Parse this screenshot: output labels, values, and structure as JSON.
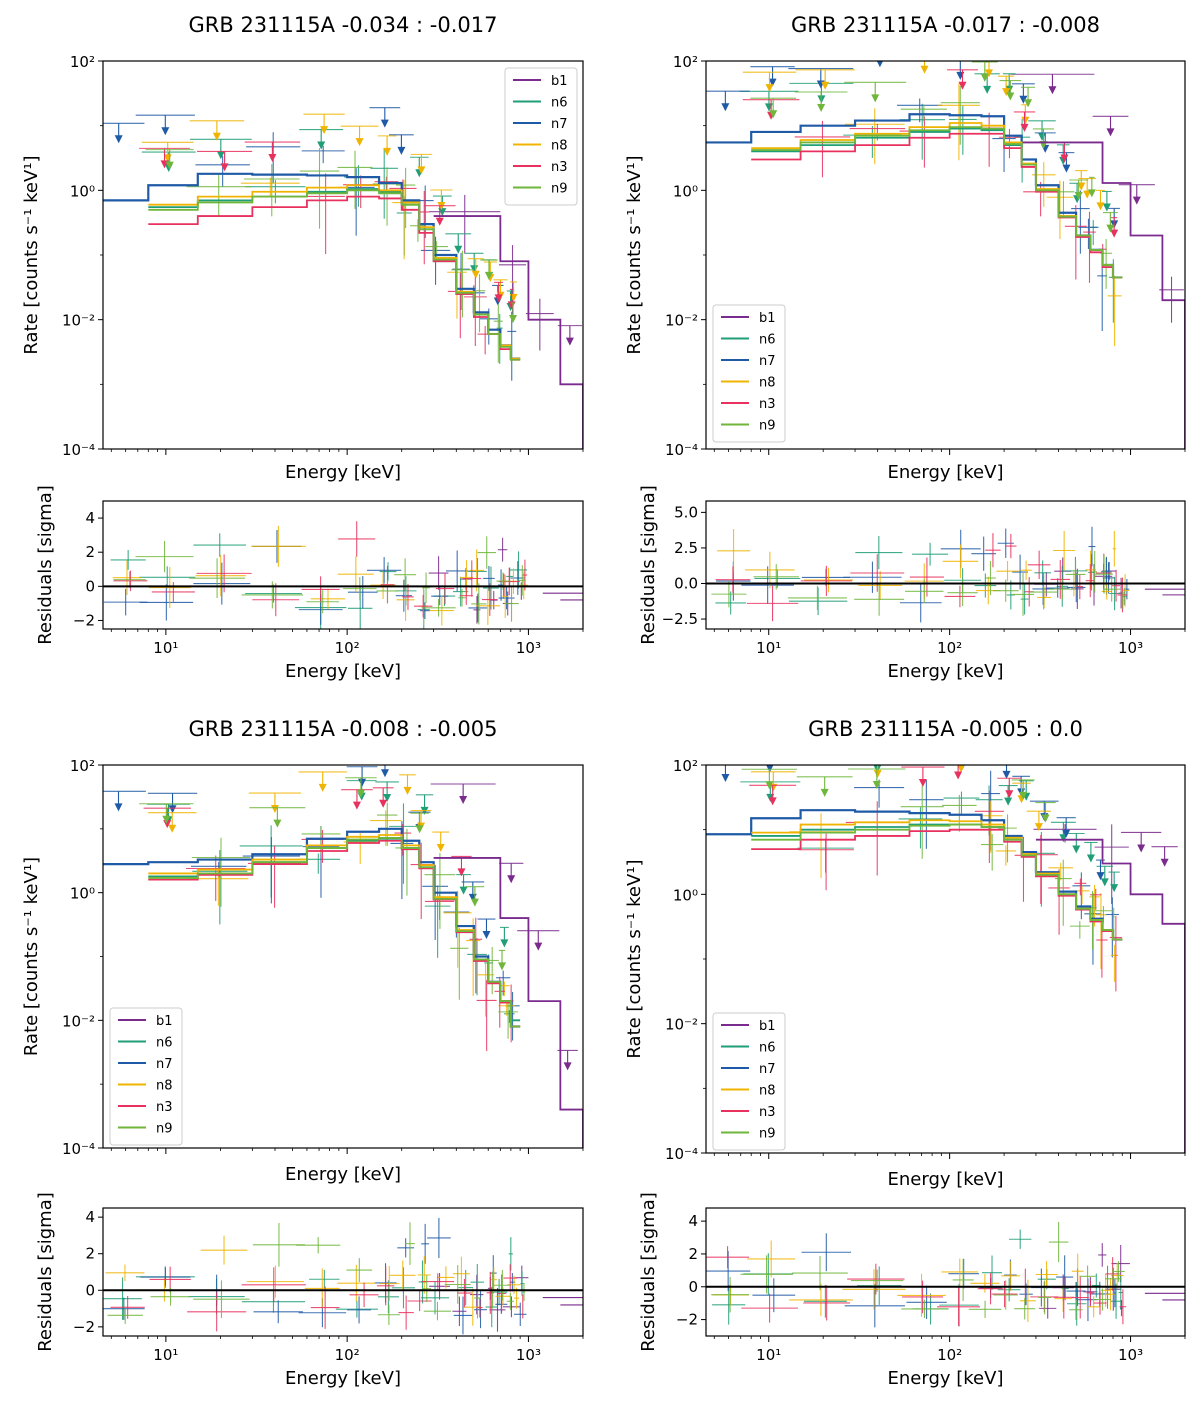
{
  "figure": {
    "label": "GRB 231115A spectral fits across four time bins"
  },
  "colors": {
    "b1": "#7b2a8d",
    "n6": "#1f9e77",
    "n7": "#1f5aa6",
    "n8": "#f0b400",
    "n3": "#e8315e",
    "n9": "#6fb63a",
    "zero_line": "#000000"
  },
  "chart_data": [
    {
      "type": "line",
      "title": "GRB 231115A  -0.034 : -0.017",
      "xlabel_top": "Energy [keV]",
      "ylabel_top": "Rate [counts s⁻¹ keV¹]",
      "xlabel_bottom": "Energy [keV]",
      "ylabel_bottom": "Residuals [sigma]",
      "xlim": [
        4.5,
        2000
      ],
      "xscale": "log",
      "ylim_top": [
        0.0001,
        100
      ],
      "yscale_top": "log",
      "yticks_top": [
        "10²",
        "10⁰",
        "10⁻²",
        "10⁻⁴"
      ],
      "ylim_bottom": [
        -2.5,
        5.0
      ],
      "yticks_bottom": [
        "4",
        "2",
        "0",
        "−2"
      ],
      "xticks": [
        "10¹",
        "10²",
        "10³"
      ],
      "legend_position": "top-right",
      "legend": [
        "b1",
        "n6",
        "n7",
        "n8",
        "n3",
        "n9"
      ],
      "models": [
        {
          "name": "b1",
          "energies": [
            300,
            700,
            1000,
            1500,
            2000
          ],
          "rates": [
            0.4,
            0.08,
            0.01,
            0.001
          ]
        },
        {
          "name": "n6",
          "energies": [
            8,
            15,
            30,
            60,
            100,
            150,
            200,
            250,
            300,
            400,
            500,
            600,
            700,
            800,
            900
          ],
          "rates": [
            0.55,
            0.7,
            0.8,
            0.95,
            1.05,
            0.95,
            0.6,
            0.25,
            0.08,
            0.025,
            0.012,
            0.006,
            0.004,
            0.0025
          ]
        },
        {
          "name": "n7",
          "energies": [
            4.5,
            8,
            15,
            30,
            60,
            100,
            150,
            200,
            250,
            300,
            400,
            500,
            600,
            700,
            800,
            900
          ],
          "rates": [
            0.7,
            1.2,
            1.8,
            1.75,
            1.7,
            1.6,
            1.3,
            0.7,
            0.3,
            0.1,
            0.03,
            0.013,
            0.007,
            0.004,
            0.0025
          ]
        },
        {
          "name": "n8",
          "energies": [
            8,
            15,
            30,
            60,
            100,
            150,
            200,
            250,
            300,
            400,
            500,
            600,
            700,
            800,
            900
          ],
          "rates": [
            0.6,
            0.8,
            0.95,
            1.1,
            1.2,
            1.0,
            0.65,
            0.27,
            0.09,
            0.027,
            0.012,
            0.006,
            0.004,
            0.0025
          ]
        },
        {
          "name": "n3",
          "energies": [
            8,
            15,
            30,
            60,
            100,
            150,
            200,
            250,
            300,
            400,
            500,
            600,
            700,
            800,
            900
          ],
          "rates": [
            0.3,
            0.4,
            0.55,
            0.7,
            0.8,
            0.75,
            0.5,
            0.22,
            0.08,
            0.025,
            0.011,
            0.006,
            0.0035,
            0.0024
          ]
        },
        {
          "name": "n9",
          "energies": [
            8,
            15,
            30,
            60,
            100,
            150,
            200,
            250,
            300,
            400,
            500,
            600,
            700,
            800,
            900
          ],
          "rates": [
            0.5,
            0.65,
            0.8,
            0.9,
            1.0,
            0.9,
            0.6,
            0.25,
            0.085,
            0.026,
            0.012,
            0.006,
            0.0038,
            0.0024
          ]
        }
      ]
    },
    {
      "type": "line",
      "title": "GRB 231115A  -0.017 : -0.008",
      "xlabel_top": "Energy [keV]",
      "ylabel_top": "Rate [counts s⁻¹ keV¹]",
      "xlabel_bottom": "Energy [keV]",
      "ylabel_bottom": "Residuals [sigma]",
      "xlim": [
        4.5,
        2000
      ],
      "xscale": "log",
      "ylim_top": [
        0.0001,
        100
      ],
      "yscale_top": "log",
      "yticks_top": [
        "10²",
        "10⁰",
        "10⁻²",
        "10⁻⁴"
      ],
      "ylim_bottom": [
        -3.2,
        5.8
      ],
      "yticks_bottom": [
        "5.0",
        "2.5",
        "0.0",
        "−2.5"
      ],
      "xticks": [
        "10¹",
        "10²",
        "10³"
      ],
      "legend_position": "bottom-left",
      "legend": [
        "b1",
        "n6",
        "n7",
        "n8",
        "n3",
        "n9"
      ],
      "models": [
        {
          "name": "b1",
          "energies": [
            250,
            700,
            1000,
            1500,
            2000
          ],
          "rates": [
            5.5,
            1.3,
            0.2,
            0.02
          ]
        },
        {
          "name": "n6",
          "energies": [
            8,
            15,
            30,
            60,
            100,
            150,
            200,
            250,
            300,
            400,
            500,
            600,
            700,
            800,
            900
          ],
          "rates": [
            4.0,
            5.0,
            6.5,
            8.0,
            9.0,
            8.5,
            5.0,
            2.5,
            1.0,
            0.4,
            0.2,
            0.12,
            0.07,
            0.045
          ]
        },
        {
          "name": "n7",
          "energies": [
            4.5,
            8,
            15,
            30,
            60,
            100,
            150,
            200,
            250,
            300,
            400,
            500,
            600,
            700,
            800,
            900
          ],
          "rates": [
            5.5,
            8.0,
            10.0,
            12.0,
            15.0,
            14.5,
            14.0,
            7.0,
            3.0,
            1.2,
            0.45,
            0.2,
            0.12,
            0.07,
            0.045
          ]
        },
        {
          "name": "n8",
          "energies": [
            8,
            15,
            30,
            60,
            100,
            150,
            200,
            250,
            300,
            400,
            500,
            600,
            700,
            800,
            900
          ],
          "rates": [
            4.5,
            6.0,
            7.5,
            9.5,
            11.0,
            10.0,
            5.5,
            2.6,
            1.05,
            0.4,
            0.2,
            0.12,
            0.07,
            0.045
          ]
        },
        {
          "name": "n3",
          "energies": [
            8,
            15,
            30,
            60,
            100,
            150,
            200,
            250,
            300,
            400,
            500,
            600,
            700,
            800,
            900
          ],
          "rates": [
            3.0,
            4.0,
            5.0,
            6.5,
            7.5,
            7.5,
            4.5,
            2.3,
            0.95,
            0.38,
            0.19,
            0.11,
            0.065,
            0.045
          ]
        },
        {
          "name": "n9",
          "energies": [
            8,
            15,
            30,
            60,
            100,
            150,
            200,
            250,
            300,
            400,
            500,
            600,
            700,
            800,
            900
          ],
          "rates": [
            4.2,
            5.5,
            7.0,
            8.5,
            9.5,
            9.0,
            5.2,
            2.5,
            1.0,
            0.39,
            0.2,
            0.12,
            0.07,
            0.045
          ]
        }
      ]
    },
    {
      "type": "line",
      "title": "GRB 231115A  -0.008 : -0.005",
      "xlabel_top": "Energy [keV]",
      "ylabel_top": "Rate [counts s⁻¹ keV¹]",
      "xlabel_bottom": "Energy [keV]",
      "ylabel_bottom": "Residuals [sigma]",
      "xlim": [
        4.5,
        2000
      ],
      "xscale": "log",
      "ylim_top": [
        0.0001,
        100
      ],
      "yscale_top": "log",
      "yticks_top": [
        "10²",
        "10⁰",
        "10⁻²",
        "10⁻⁴"
      ],
      "ylim_bottom": [
        -2.5,
        4.5
      ],
      "yticks_bottom": [
        "4",
        "2",
        "0",
        "−2"
      ],
      "xticks": [
        "10¹",
        "10²",
        "10³"
      ],
      "legend_position": "bottom-left",
      "legend": [
        "b1",
        "n6",
        "n7",
        "n8",
        "n3",
        "n9"
      ],
      "models": [
        {
          "name": "b1",
          "energies": [
            300,
            700,
            1000,
            1500,
            2000
          ],
          "rates": [
            3.5,
            0.4,
            0.02,
            0.0004
          ]
        },
        {
          "name": "n6",
          "energies": [
            8,
            15,
            30,
            60,
            100,
            150,
            200,
            250,
            300,
            400,
            500,
            600,
            700,
            800,
            900
          ],
          "rates": [
            1.8,
            2.0,
            3.0,
            5.0,
            6.5,
            7.0,
            5.0,
            2.5,
            0.8,
            0.25,
            0.09,
            0.04,
            0.02,
            0.01
          ]
        },
        {
          "name": "n7",
          "energies": [
            4.5,
            8,
            15,
            30,
            60,
            100,
            150,
            200,
            250,
            300,
            400,
            500,
            600,
            700,
            800,
            900
          ],
          "rates": [
            2.8,
            3.0,
            3.3,
            4.0,
            7.0,
            9.0,
            10.0,
            6.5,
            3.0,
            1.0,
            0.3,
            0.1,
            0.04,
            0.02,
            0.008
          ]
        },
        {
          "name": "n8",
          "energies": [
            8,
            15,
            30,
            60,
            100,
            150,
            200,
            250,
            300,
            400,
            500,
            600,
            700,
            800,
            900
          ],
          "rates": [
            2.0,
            2.3,
            3.3,
            5.5,
            7.5,
            8.0,
            5.5,
            2.7,
            0.85,
            0.26,
            0.09,
            0.04,
            0.02,
            0.008
          ]
        },
        {
          "name": "n3",
          "energies": [
            8,
            15,
            30,
            60,
            100,
            150,
            200,
            250,
            300,
            400,
            500,
            600,
            700,
            800,
            900
          ],
          "rates": [
            1.6,
            1.9,
            2.8,
            4.5,
            6.0,
            6.5,
            4.8,
            2.4,
            0.78,
            0.24,
            0.085,
            0.038,
            0.019,
            0.008
          ]
        },
        {
          "name": "n9",
          "energies": [
            8,
            15,
            30,
            60,
            100,
            150,
            200,
            250,
            300,
            400,
            500,
            600,
            700,
            800,
            900
          ],
          "rates": [
            1.7,
            2.0,
            3.0,
            5.0,
            6.8,
            7.2,
            5.0,
            2.5,
            0.8,
            0.25,
            0.09,
            0.04,
            0.02,
            0.008
          ]
        }
      ]
    },
    {
      "type": "line",
      "title": "GRB 231115A  -0.005 : 0.0",
      "xlabel_top": "Energy [keV]",
      "ylabel_top": "Rate [counts s⁻¹ keV¹]",
      "xlabel_bottom": "Energy [keV]",
      "ylabel_bottom": "Residuals [sigma]",
      "xlim": [
        4.5,
        2000
      ],
      "xscale": "log",
      "ylim_top": [
        0.0001,
        100
      ],
      "yscale_top": "log",
      "yticks_top": [
        "10²",
        "10⁰",
        "10⁻²",
        "10⁻⁴"
      ],
      "ylim_bottom": [
        -3.0,
        4.8
      ],
      "yticks_bottom": [
        "4",
        "2",
        "0",
        "−2"
      ],
      "xticks": [
        "10¹",
        "10²",
        "10³"
      ],
      "legend_position": "bottom-left",
      "legend": [
        "b1",
        "n6",
        "n7",
        "n8",
        "n3",
        "n9"
      ],
      "models": [
        {
          "name": "b1",
          "energies": [
            300,
            700,
            1000,
            1500,
            2000
          ],
          "rates": [
            7.0,
            3.0,
            1.0,
            0.35
          ]
        },
        {
          "name": "n6",
          "energies": [
            8,
            15,
            30,
            60,
            100,
            150,
            200,
            250,
            300,
            400,
            500,
            600,
            700,
            800,
            900
          ],
          "rates": [
            8.0,
            10.0,
            11.0,
            12.0,
            12.0,
            11.0,
            7.0,
            4.0,
            2.0,
            1.0,
            0.6,
            0.4,
            0.28,
            0.2
          ]
        },
        {
          "name": "n7",
          "energies": [
            4.5,
            8,
            15,
            30,
            60,
            100,
            150,
            200,
            250,
            300,
            400,
            500,
            600,
            700,
            800,
            900
          ],
          "rates": [
            8.5,
            15.0,
            20.0,
            19.0,
            18.0,
            17.0,
            14.0,
            8.0,
            4.5,
            2.2,
            1.1,
            0.65,
            0.42,
            0.28,
            0.2
          ]
        },
        {
          "name": "n8",
          "energies": [
            8,
            15,
            30,
            60,
            100,
            150,
            200,
            250,
            300,
            400,
            500,
            600,
            700,
            800,
            900
          ],
          "rates": [
            9.0,
            12.0,
            13.0,
            14.0,
            13.5,
            12.0,
            7.5,
            4.2,
            2.1,
            1.0,
            0.6,
            0.4,
            0.28,
            0.2
          ]
        },
        {
          "name": "n3",
          "energies": [
            8,
            15,
            30,
            60,
            100,
            150,
            200,
            250,
            300,
            400,
            500,
            600,
            700,
            800,
            900
          ],
          "rates": [
            5.0,
            7.0,
            8.0,
            9.5,
            10.0,
            10.0,
            6.5,
            3.8,
            1.9,
            0.95,
            0.58,
            0.38,
            0.27,
            0.2
          ]
        },
        {
          "name": "n9",
          "energies": [
            8,
            15,
            30,
            60,
            100,
            150,
            200,
            250,
            300,
            400,
            500,
            600,
            700,
            800,
            900
          ],
          "rates": [
            7.0,
            9.0,
            10.0,
            11.5,
            12.0,
            11.0,
            7.0,
            4.0,
            2.0,
            1.0,
            0.6,
            0.4,
            0.28,
            0.2
          ]
        }
      ]
    }
  ]
}
